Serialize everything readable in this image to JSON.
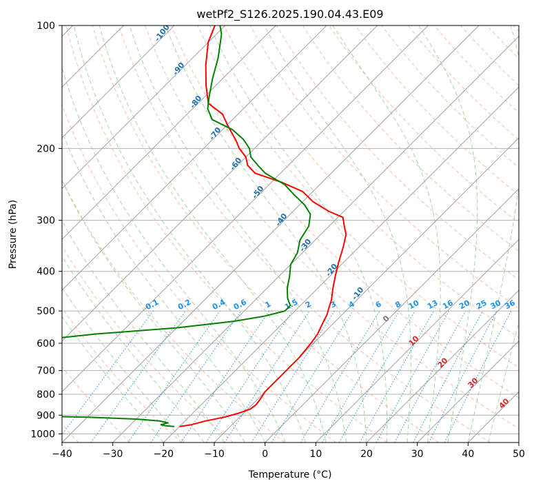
{
  "chart_data": {
    "type": "line",
    "chart_kind": "skew-t log-p diagram",
    "title": "wetPf2_S126.2025.190.04.43.E09",
    "xlabel": "Temperature (°C)",
    "ylabel": "Pressure (hPa)",
    "xlim": [
      -40,
      50
    ],
    "ylim": [
      1050,
      100
    ],
    "y_scale": "log",
    "grid": true,
    "x_ticks": [
      -40,
      -30,
      -20,
      -10,
      0,
      10,
      20,
      30,
      40,
      50
    ],
    "y_ticks": [
      100,
      200,
      300,
      400,
      500,
      600,
      700,
      800,
      900,
      1000
    ],
    "colors": {
      "temperature": "#ff0000",
      "dewpoint": "#008000",
      "isotherms": "#a0a0a0",
      "dry_adiabats": "#f4a582",
      "moist_adiabats": "#8fc98f",
      "mixing_ratio": "#1e8fe6",
      "dry_label": "#1f6fb0",
      "moist_label": "#d62728"
    },
    "series": [
      {
        "color": "#ff0000",
        "points": [
          [
            -20,
            960
          ],
          [
            -18,
            950
          ],
          [
            -16,
            930
          ],
          [
            -13,
            910
          ],
          [
            -11,
            890
          ],
          [
            -9.5,
            870
          ],
          [
            -9.2,
            850
          ],
          [
            -9.5,
            820
          ],
          [
            -10,
            790
          ],
          [
            -10,
            760
          ],
          [
            -10,
            720
          ],
          [
            -10,
            680
          ],
          [
            -10,
            650
          ],
          [
            -10.5,
            600
          ],
          [
            -11,
            570
          ],
          [
            -12,
            540
          ],
          [
            -13,
            510
          ],
          [
            -14,
            490
          ],
          [
            -15,
            470
          ],
          [
            -17,
            440
          ],
          [
            -19,
            410
          ],
          [
            -21,
            380
          ],
          [
            -23,
            350
          ],
          [
            -25,
            325
          ],
          [
            -27,
            310
          ],
          [
            -29,
            295
          ],
          [
            -33,
            285
          ],
          [
            -38,
            270
          ],
          [
            -42,
            255
          ],
          [
            -48,
            242
          ],
          [
            -55,
            230
          ],
          [
            -58,
            220
          ],
          [
            -60,
            210
          ],
          [
            -63,
            200
          ],
          [
            -65,
            192
          ],
          [
            -67,
            185
          ],
          [
            -70,
            175
          ],
          [
            -73,
            165
          ],
          [
            -78,
            155
          ],
          [
            -82,
            140
          ],
          [
            -86,
            125
          ],
          [
            -90,
            110
          ],
          [
            -92,
            100
          ]
        ]
      },
      {
        "color": "#008000",
        "points": [
          [
            -21,
            960
          ],
          [
            -23,
            955
          ],
          [
            -24,
            950
          ],
          [
            -23,
            940
          ],
          [
            -25,
            930
          ],
          [
            -30,
            920
          ],
          [
            -40,
            910
          ],
          [
            -50,
            905
          ],
          [
            -55,
            900
          ],
          [
            -60,
            880
          ],
          [
            -70,
            860
          ],
          [
            -85,
            850
          ],
          [
            -90,
            840
          ],
          [
            -85,
            830
          ],
          [
            -82,
            810
          ],
          [
            -78,
            790
          ],
          [
            -75,
            770
          ],
          [
            -79,
            750
          ],
          [
            -85,
            720
          ],
          [
            -100,
            700
          ],
          [
            -105,
            680
          ],
          [
            -98,
            660
          ],
          [
            -85,
            630
          ],
          [
            -70,
            600
          ],
          [
            -55,
            570
          ],
          [
            -40,
            550
          ],
          [
            -30,
            530
          ],
          [
            -25,
            515
          ],
          [
            -22,
            500
          ],
          [
            -22,
            485
          ],
          [
            -24,
            465
          ],
          [
            -26,
            440
          ],
          [
            -28,
            410
          ],
          [
            -30,
            385
          ],
          [
            -31,
            360
          ],
          [
            -33,
            335
          ],
          [
            -34,
            310
          ],
          [
            -36,
            290
          ],
          [
            -39,
            275
          ],
          [
            -43,
            260
          ],
          [
            -47,
            245
          ],
          [
            -53,
            230
          ],
          [
            -56,
            220
          ],
          [
            -59,
            210
          ],
          [
            -61,
            200
          ],
          [
            -64,
            190
          ],
          [
            -68,
            180
          ],
          [
            -74,
            170
          ],
          [
            -77,
            160
          ],
          [
            -79,
            150
          ],
          [
            -82,
            135
          ],
          [
            -85,
            120
          ],
          [
            -89,
            105
          ],
          [
            -91,
            100
          ]
        ]
      }
    ],
    "dry_adiabat_labels": [
      "-100",
      "-90",
      "-80",
      "-70",
      "-60",
      "-50",
      "-40",
      "-30",
      "-20",
      "-10"
    ],
    "moist_adiabat_labels": [
      "0",
      "10",
      "20",
      "30",
      "40"
    ],
    "mixing_ratio_labels": [
      "0.1",
      "0.2",
      "0.4",
      "0.6",
      "1",
      "1.5",
      "2",
      "3",
      "4",
      "6",
      "8",
      "10",
      "13",
      "16",
      "20",
      "25",
      "30",
      "36"
    ]
  }
}
